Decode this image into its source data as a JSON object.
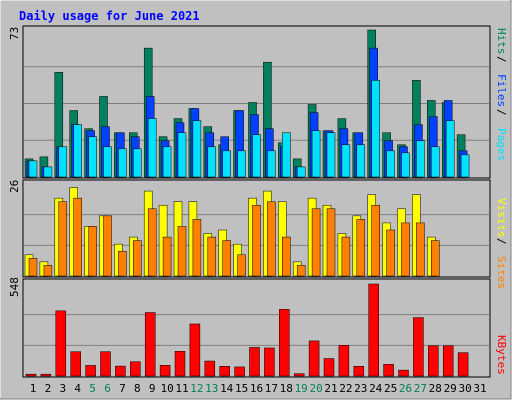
{
  "chart_data": {
    "type": "bar",
    "title": "Daily usage for June 2021",
    "days": [
      "1",
      "2",
      "3",
      "4",
      "5",
      "6",
      "7",
      "8",
      "9",
      "10",
      "11",
      "12",
      "13",
      "14",
      "15",
      "16",
      "17",
      "18",
      "19",
      "20",
      "21",
      "22",
      "23",
      "24",
      "25",
      "26",
      "27",
      "28",
      "29",
      "30",
      "31"
    ],
    "weekend_days": [
      5,
      6,
      12,
      13,
      19,
      20,
      26,
      27
    ],
    "panels": {
      "hits": {
        "ymax_label": "73",
        "ymax": 73,
        "right_label": {
          "pages": "Pages",
          "files": "Files",
          "hits": "Hits"
        },
        "series": {
          "hits": [
            9,
            10,
            52,
            33,
            24,
            40,
            22,
            22,
            64,
            20,
            29,
            34,
            25,
            16,
            33,
            37,
            57,
            17,
            9,
            36,
            23,
            29,
            22,
            73,
            22,
            16,
            48,
            38,
            37,
            21,
            0
          ],
          "files": [
            8,
            5,
            15,
            26,
            23,
            25,
            22,
            20,
            40,
            18,
            27,
            34,
            22,
            20,
            33,
            31,
            24,
            15,
            5,
            32,
            23,
            24,
            22,
            64,
            18,
            15,
            26,
            30,
            38,
            13,
            0
          ],
          "pages": [
            8,
            5,
            15,
            26,
            20,
            15,
            14,
            14,
            29,
            15,
            22,
            28,
            15,
            13,
            13,
            21,
            13,
            22,
            5,
            23,
            22,
            16,
            16,
            48,
            13,
            12,
            18,
            15,
            28,
            11,
            0
          ]
        }
      },
      "visits": {
        "ymax_label": "26",
        "ymax": 26,
        "right_label": {
          "sites": "Sites",
          "visits": "Visits"
        },
        "series": {
          "visits": [
            6,
            4,
            22,
            25,
            14,
            17,
            9,
            11,
            24,
            20,
            21,
            21,
            12,
            13,
            9,
            22,
            24,
            21,
            4,
            22,
            20,
            12,
            17,
            23,
            15,
            19,
            23,
            11,
            0,
            0,
            0
          ],
          "sites": [
            5,
            3,
            21,
            22,
            14,
            17,
            7,
            10,
            19,
            11,
            14,
            16,
            11,
            10,
            6,
            20,
            21,
            11,
            3,
            19,
            19,
            11,
            16,
            20,
            13,
            15,
            15,
            10,
            0,
            0,
            0
          ]
        }
      },
      "kbytes": {
        "ymax_label": "548",
        "ymax": 548,
        "right_label": {
          "kbytes": "KBytes"
        },
        "series": {
          "kbytes": [
            11,
            11,
            388,
            145,
            63,
            145,
            59,
            85,
            378,
            64,
            147,
            310,
            89,
            58,
            54,
            170,
            167,
            397,
            14,
            209,
            104,
            183,
            58,
            548,
            70,
            35,
            348,
            180,
            180,
            139,
            0
          ]
        }
      }
    },
    "colors": {
      "hits": "#00805C",
      "files": "#0040FF",
      "pages": "#00E0FF",
      "visits": "#FFFF00",
      "sites": "#FF8000",
      "kbytes": "#FF0000",
      "title": "#0000FF",
      "weekend": "#00805C",
      "background": "#C0C0C0",
      "grid": "#808080"
    }
  },
  "legend_text": {
    "separator": " / "
  }
}
